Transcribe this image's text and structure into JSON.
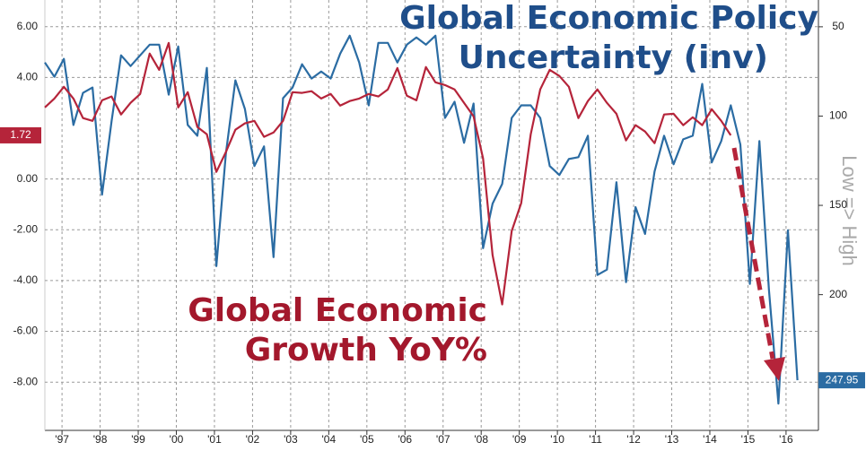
{
  "chart_data": {
    "type": "line",
    "annotations": [
      {
        "lines": [
          "Global Economic Policy",
          "Uncertainty (inv)"
        ],
        "color": "#1f4e8a"
      },
      {
        "lines": [
          "Global Economic",
          "Growth YoY%"
        ],
        "color": "#a3182c"
      }
    ],
    "y2label": "Low => High",
    "x": [
      1997,
      1997.25,
      1997.5,
      1997.75,
      1998,
      1998.25,
      1998.5,
      1998.75,
      1999,
      1999.25,
      1999.5,
      1999.75,
      2000,
      2000.25,
      2000.5,
      2000.75,
      2001,
      2001.25,
      2001.5,
      2001.75,
      2002,
      2002.25,
      2002.5,
      2002.75,
      2003,
      2003.25,
      2003.5,
      2003.75,
      2004,
      2004.25,
      2004.5,
      2004.75,
      2005,
      2005.25,
      2005.5,
      2005.75,
      2006,
      2006.25,
      2006.5,
      2006.75,
      2007,
      2007.25,
      2007.5,
      2007.75,
      2008,
      2008.25,
      2008.5,
      2008.75,
      2009,
      2009.25,
      2009.5,
      2009.75,
      2010,
      2010.25,
      2010.5,
      2010.75,
      2011,
      2011.25,
      2011.5,
      2011.75,
      2012,
      2012.25,
      2012.5,
      2012.75,
      2013,
      2013.25,
      2013.5,
      2013.75,
      2014,
      2014.25,
      2014.5,
      2014.75,
      2015,
      2015.25,
      2015.5,
      2015.75,
      2016,
      2016.25,
      2016.5,
      2016.75
    ],
    "xlim": [
      1997,
      2017.3
    ],
    "xticks": [
      {
        "value": 1997.45,
        "label": "'97"
      },
      {
        "value": 1998.45,
        "label": "'98"
      },
      {
        "value": 1999.45,
        "label": "'99"
      },
      {
        "value": 2000.45,
        "label": "'00"
      },
      {
        "value": 2001.45,
        "label": "'01"
      },
      {
        "value": 2002.45,
        "label": "'02"
      },
      {
        "value": 2003.45,
        "label": "'03"
      },
      {
        "value": 2004.45,
        "label": "'04"
      },
      {
        "value": 2005.45,
        "label": "'05"
      },
      {
        "value": 2006.45,
        "label": "'06"
      },
      {
        "value": 2007.45,
        "label": "'07"
      },
      {
        "value": 2008.45,
        "label": "'08"
      },
      {
        "value": 2009.45,
        "label": "'09"
      },
      {
        "value": 2010.45,
        "label": "'10"
      },
      {
        "value": 2011.45,
        "label": "'11"
      },
      {
        "value": 2012.45,
        "label": "'12"
      },
      {
        "value": 2013.45,
        "label": "'13"
      },
      {
        "value": 2014.45,
        "label": "'14"
      },
      {
        "value": 2015.45,
        "label": "'15"
      },
      {
        "value": 2016.45,
        "label": "'16"
      }
    ],
    "ylim": [
      -9.9,
      7.05
    ],
    "yticks": [
      {
        "value": 6,
        "label": "6.00"
      },
      {
        "value": 4,
        "label": "4.00"
      },
      {
        "value": 0,
        "label": "0.00"
      },
      {
        "value": -2,
        "label": "-2.00"
      },
      {
        "value": -4,
        "label": "-4.00"
      },
      {
        "value": -6,
        "label": "-6.00"
      },
      {
        "value": -8,
        "label": "-8.00"
      }
    ],
    "y2lim": [
      276,
      35
    ],
    "y2ticks": [
      50,
      100,
      150,
      200
    ],
    "grid": true,
    "series": [
      {
        "name": "Global Economic Policy Uncertainty (inv)",
        "color": "#2b6ca3",
        "axis": "y2",
        "values": [
          70,
          78,
          68,
          105,
          87,
          84,
          144,
          103,
          66,
          72,
          66,
          60,
          60,
          88,
          61,
          105,
          111,
          73,
          184,
          121,
          80,
          96,
          128,
          117,
          179,
          90,
          84,
          71,
          79,
          75,
          79,
          65,
          55,
          70,
          94,
          59,
          59,
          70,
          60,
          56,
          60,
          55,
          101,
          92,
          115,
          93,
          174,
          149,
          138,
          101,
          94,
          94,
          101,
          128,
          133,
          124,
          123,
          111,
          189,
          186,
          137,
          193,
          151,
          166,
          131,
          111,
          127,
          113,
          111,
          82,
          126,
          114,
          94,
          116,
          194,
          114,
          197,
          261,
          164,
          247.95
        ],
        "value_labels": [
          null,
          null,
          null,
          null,
          null,
          null,
          null,
          null,
          null,
          null,
          null,
          null,
          null,
          null,
          null,
          null,
          null,
          null,
          null,
          null,
          null,
          null,
          null,
          null,
          null,
          null,
          null,
          null,
          null,
          null,
          null,
          null,
          null,
          null,
          null,
          null,
          null,
          null,
          null,
          null,
          null,
          null,
          null,
          null,
          null,
          null,
          null,
          null,
          null,
          null,
          null,
          null,
          null,
          null,
          null,
          null,
          null,
          null,
          null,
          null,
          null,
          null,
          null,
          null,
          null,
          null,
          null,
          null,
          null,
          null,
          null,
          null,
          null,
          null,
          null,
          null,
          null,
          null,
          null,
          "247.95"
        ]
      },
      {
        "name": "Global Economic Growth YoY%",
        "color": "#b5243a",
        "axis": "y",
        "values": [
          2.82,
          3.17,
          3.63,
          3.17,
          2.4,
          2.29,
          3.1,
          3.25,
          2.54,
          3.0,
          3.35,
          4.94,
          4.3,
          5.36,
          2.82,
          3.42,
          2.05,
          1.76,
          0.28,
          1.06,
          1.94,
          2.19,
          2.29,
          1.66,
          1.83,
          2.29,
          3.42,
          3.39,
          3.46,
          3.17,
          3.35,
          2.89,
          3.07,
          3.17,
          3.35,
          3.25,
          3.53,
          4.37,
          3.28,
          3.1,
          4.41,
          3.81,
          3.7,
          3.53,
          3.0,
          2.47,
          0.81,
          -3.0,
          -4.94,
          -2.05,
          -0.95,
          1.76,
          3.53,
          4.3,
          4.06,
          3.63,
          2.4,
          3.07,
          3.53,
          3.0,
          2.57,
          1.52,
          2.12,
          1.87,
          1.41,
          2.54,
          2.57,
          2.12,
          2.43,
          2.12,
          2.75,
          2.29,
          1.72,
          null,
          null,
          null,
          null,
          null,
          null,
          null
        ],
        "value_labels": [
          null,
          null,
          null,
          null,
          null,
          null,
          null,
          null,
          null,
          null,
          null,
          null,
          null,
          null,
          null,
          null,
          null,
          null,
          null,
          null,
          null,
          null,
          null,
          null,
          null,
          null,
          null,
          null,
          null,
          null,
          null,
          null,
          null,
          null,
          null,
          null,
          null,
          null,
          null,
          null,
          null,
          null,
          null,
          null,
          null,
          null,
          null,
          null,
          null,
          null,
          null,
          null,
          null,
          null,
          null,
          null,
          null,
          null,
          null,
          null,
          null,
          null,
          null,
          null,
          null,
          null,
          null,
          null,
          null,
          null,
          null,
          null,
          "1.72",
          null,
          null,
          null,
          null,
          null,
          null,
          null
        ]
      }
    ]
  }
}
